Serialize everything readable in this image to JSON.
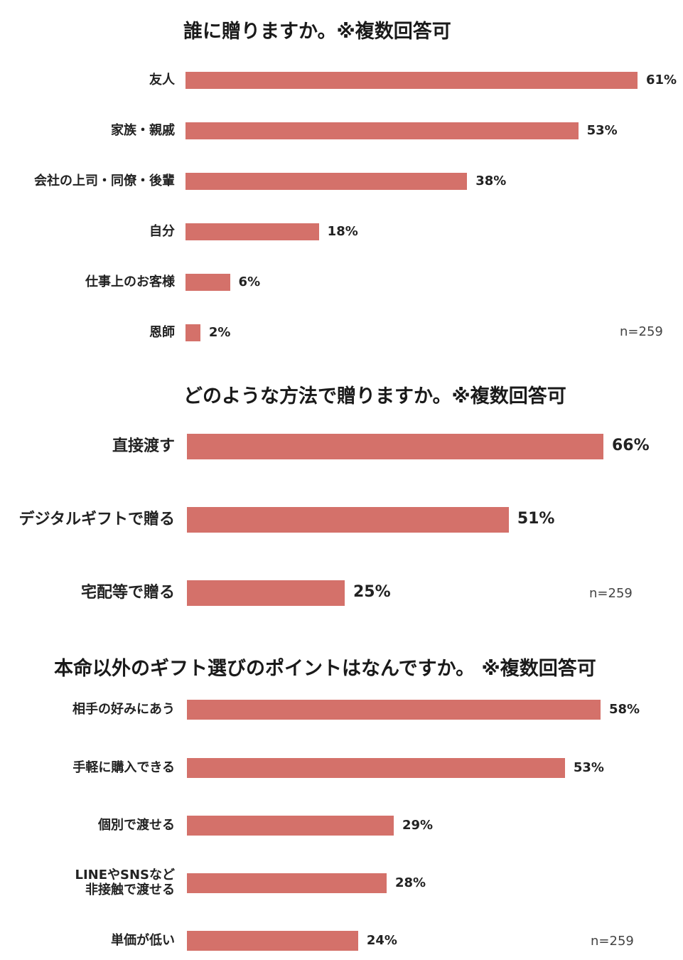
{
  "colors": {
    "bar": "#D4716A",
    "text": "#222222"
  },
  "chart_data": [
    {
      "type": "bar",
      "orientation": "horizontal",
      "title": "誰に贈りますか。※複数回答可",
      "categories": [
        "友人",
        "家族・親戚",
        "会社の上司・同僚・後輩",
        "自分",
        "仕事上のお客様",
        "恩師"
      ],
      "values": [
        61,
        53,
        38,
        18,
        6,
        2
      ],
      "value_labels": [
        "61%",
        "53%",
        "38%",
        "18%",
        "6%",
        "2%"
      ],
      "note": "n=259",
      "xlim": [
        0,
        61
      ],
      "grid": false,
      "legend": "none"
    },
    {
      "type": "bar",
      "orientation": "horizontal",
      "title": "どのような方法で贈りますか。※複数回答可",
      "categories": [
        "直接渡す",
        "デジタルギフトで贈る",
        "宅配等で贈る"
      ],
      "values": [
        66,
        51,
        25
      ],
      "value_labels": [
        "66%",
        "51%",
        "25%"
      ],
      "note": "n=259",
      "xlim": [
        0,
        66
      ],
      "grid": false,
      "legend": "none"
    },
    {
      "type": "bar",
      "orientation": "horizontal",
      "title": "本命以外のギフト選びのポイントはなんですか。 ※複数回答可",
      "categories": [
        "相手の好みにあう",
        "手軽に購入できる",
        "個別で渡せる",
        "LINEやSNSなど\n非接触で渡せる",
        "単価が低い"
      ],
      "values": [
        58,
        53,
        29,
        28,
        24
      ],
      "value_labels": [
        "58%",
        "53%",
        "29%",
        "28%",
        "24%"
      ],
      "note": "n=259",
      "xlim": [
        0,
        58
      ],
      "grid": false,
      "legend": "none"
    }
  ]
}
